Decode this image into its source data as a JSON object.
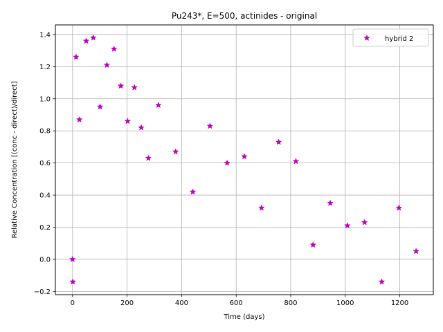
{
  "chart_data": {
    "type": "scatter",
    "title": "Pu243*, E=500, actinides - original",
    "xlabel": "Time (days)",
    "ylabel": "Relative Concentration [(conc - direct)/direct]",
    "xlim": [
      -63,
      1323
    ],
    "ylim": [
      -0.22,
      1.46
    ],
    "xticks": [
      0,
      200,
      400,
      600,
      800,
      1000,
      1200
    ],
    "yticks": [
      -0.2,
      0.0,
      0.2,
      0.4,
      0.6,
      0.8,
      1.0,
      1.2,
      1.4
    ],
    "ytick_labels": [
      "−0.2",
      "0.0",
      "0.2",
      "0.4",
      "0.6",
      "0.8",
      "1.0",
      "1.2",
      "1.4"
    ],
    "grid": true,
    "legend_position": "top-right",
    "marker": "star",
    "series": [
      {
        "name": "hybrid 2",
        "color": "#bf00bf",
        "x": [
          0,
          1,
          13,
          25,
          50,
          76,
          101,
          126,
          152,
          177,
          202,
          227,
          252,
          278,
          315,
          378,
          441,
          504,
          567,
          630,
          693,
          756,
          819,
          882,
          945,
          1008,
          1071,
          1134,
          1197,
          1260
        ],
        "y": [
          0.0,
          -0.14,
          1.26,
          0.87,
          1.36,
          1.38,
          0.95,
          1.21,
          1.31,
          1.08,
          0.86,
          1.07,
          0.82,
          0.63,
          0.96,
          0.67,
          0.42,
          0.83,
          0.6,
          0.64,
          0.32,
          0.73,
          0.61,
          0.09,
          0.35,
          0.21,
          0.23,
          -0.14,
          0.32,
          0.05
        ]
      }
    ]
  }
}
